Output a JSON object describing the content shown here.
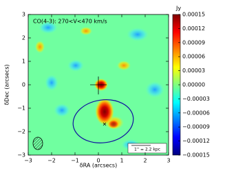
{
  "chart_data": {
    "type": "image",
    "title": "CO(4-3): 270<V<470 km/s",
    "xlabel": "δRA (arcsecs)",
    "ylabel": "δDec (arcsecs)",
    "xlim": [
      -3,
      3
    ],
    "ylim": [
      -3,
      3
    ],
    "xticks": [
      {
        "value": -3,
        "label": "−3"
      },
      {
        "value": -2,
        "label": "−2"
      },
      {
        "value": -1,
        "label": "−1"
      },
      0,
      1,
      2,
      3
    ],
    "yticks": [
      {
        "value": -3,
        "label": "−3"
      },
      {
        "value": -2,
        "label": "−2"
      },
      {
        "value": -1,
        "label": "−1"
      },
      0,
      1,
      2,
      3
    ],
    "colorbar": {
      "label": "Jy",
      "lim": [
        -0.00015,
        0.00015
      ],
      "ticks": [
        {
          "value": -0.00015,
          "label": "−0.00015"
        },
        {
          "value": -0.00012,
          "label": "−0.00012"
        },
        {
          "value": -9e-05,
          "label": "−0.00009"
        },
        {
          "value": -6e-05,
          "label": "−0.00006"
        },
        {
          "value": -3e-05,
          "label": "−0.00003"
        },
        {
          "value": 0,
          "label": "0.00000"
        },
        {
          "value": 3e-05,
          "label": "0.00003"
        },
        {
          "value": 6e-05,
          "label": "0.00006"
        },
        {
          "value": 9e-05,
          "label": "0.00009"
        },
        {
          "value": 0.00012,
          "label": "0.00012"
        },
        {
          "value": 0.00015,
          "label": "0.00015"
        }
      ]
    },
    "scale_label": "1'' = 2.2 kpc"
  }
}
